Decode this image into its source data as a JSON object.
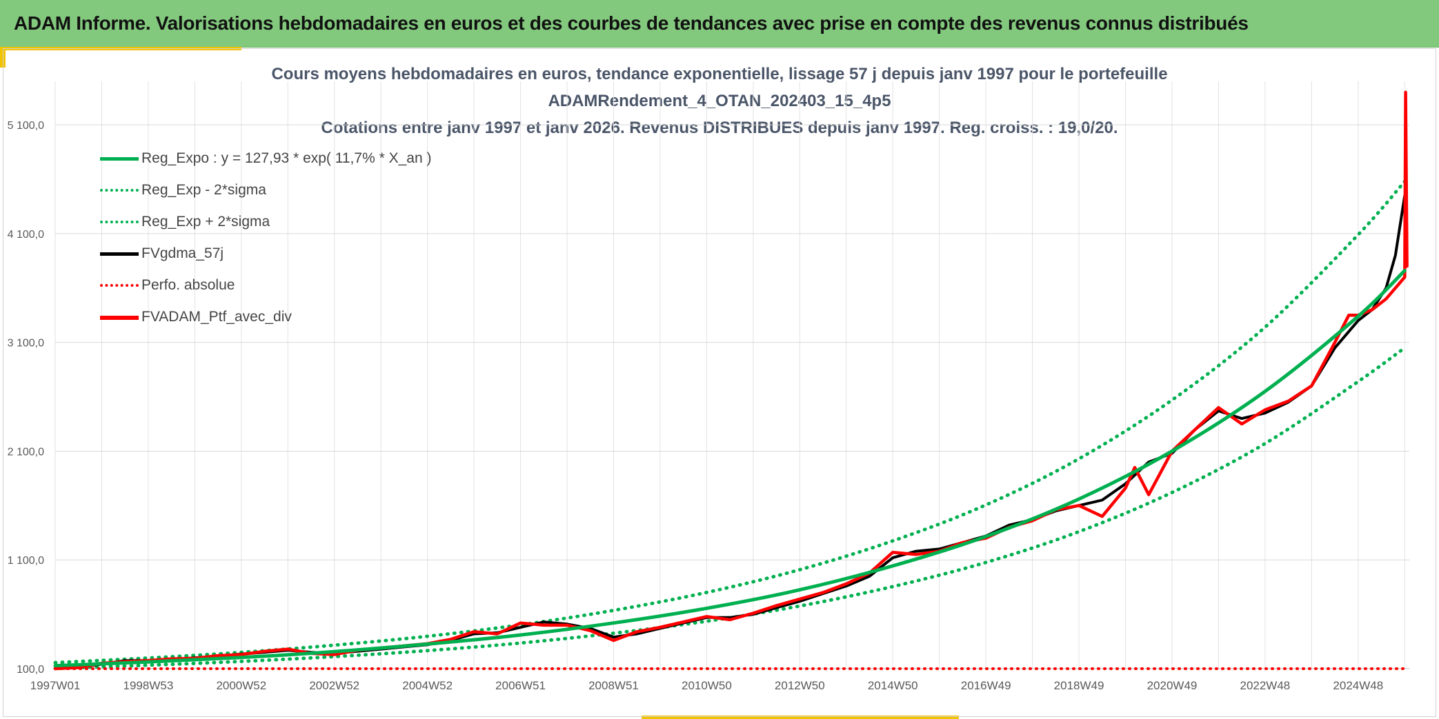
{
  "header": {
    "title": "ADAM Informe. Valorisations hebdomadaires en euros et des courbes de tendances avec prise en compte des revenus connus distribués"
  },
  "colors": {
    "banner": "#82c97d",
    "accent": "#f2c300",
    "reg_expo": "#00b050",
    "fvgdma": "#000000",
    "ptf": "#ff0000"
  },
  "chart_data": {
    "type": "line",
    "title_lines": [
      "Cours moyens hebdomadaires en euros, tendance exponentielle, lissage 57 j depuis janv 1997 pour le portefeuille",
      "ADAMRendement_4_OTAN_202403_15_4p5",
      "Cotations entre janv 1997 et janv 2026. Revenus DISTRIBUES depuis janv 1997. Reg. croiss. : 19,0/20."
    ],
    "xlabel": "",
    "ylabel": "",
    "xlim": [
      1997.0,
      2026.1
    ],
    "ylim": [
      100,
      5500
    ],
    "y_ticks": [
      {
        "value": 100,
        "label": "100,0"
      },
      {
        "value": 1100,
        "label": "1 100,0"
      },
      {
        "value": 2100,
        "label": "2 100,0"
      },
      {
        "value": 3100,
        "label": "3 100,0"
      },
      {
        "value": 4100,
        "label": "4 100,0"
      },
      {
        "value": 5100,
        "label": "5 100,0"
      }
    ],
    "x_ticks": [
      {
        "value": 1997.0,
        "label": "1997W01"
      },
      {
        "value": 1999.0,
        "label": "1998W53"
      },
      {
        "value": 2001.0,
        "label": "2000W52"
      },
      {
        "value": 2003.0,
        "label": "2002W52"
      },
      {
        "value": 2005.0,
        "label": "2004W52"
      },
      {
        "value": 2007.0,
        "label": "2006W51"
      },
      {
        "value": 2009.0,
        "label": "2008W51"
      },
      {
        "value": 2011.0,
        "label": "2010W50"
      },
      {
        "value": 2013.0,
        "label": "2012W50"
      },
      {
        "value": 2015.0,
        "label": "2014W50"
      },
      {
        "value": 2017.0,
        "label": "2016W49"
      },
      {
        "value": 2019.0,
        "label": "2018W49"
      },
      {
        "value": 2021.0,
        "label": "2020W49"
      },
      {
        "value": 2023.0,
        "label": "2022W48"
      },
      {
        "value": 2025.0,
        "label": "2024W48"
      }
    ],
    "grid": true,
    "legend_position": "top-left",
    "legend": [
      {
        "name": "Reg_Expo : y = 127,93 * exp( 11,7% *  X_an )",
        "style": "solid",
        "color": "#00b050"
      },
      {
        "name": "Reg_Exp - 2*sigma",
        "style": "dotted",
        "color": "#00b050"
      },
      {
        "name": "Reg_Exp + 2*sigma",
        "style": "dotted",
        "color": "#00b050"
      },
      {
        "name": "FVgdma_57j",
        "style": "solid",
        "color": "#000000"
      },
      {
        "name": "Perfo. absolue",
        "style": "dotted",
        "color": "#ff0000"
      },
      {
        "name": "FVADAM_Ptf_avec_div",
        "style": "solid",
        "color": "#ff0000"
      }
    ],
    "series": [
      {
        "name": "Reg_Expo : y = 127,93 * exp( 11,7% *  X_an )",
        "x": [
          1997.0,
          1999.0,
          2001.0,
          2003.0,
          2005.0,
          2007.0,
          2009.0,
          2011.0,
          2013.0,
          2015.0,
          2017.0,
          2019.0,
          2021.0,
          2023.0,
          2025.0,
          2026.0
        ],
        "values": [
          128,
          162,
          203,
          257,
          326,
          410,
          520,
          655,
          825,
          1045,
          1315,
          1660,
          2100,
          2650,
          3340,
          3760
        ]
      },
      {
        "name": "Reg_Exp - 2*sigma",
        "x": [
          1997.0,
          1999.0,
          2001.0,
          2003.0,
          2005.0,
          2007.0,
          2009.0,
          2011.0,
          2013.0,
          2015.0,
          2017.0,
          2019.0,
          2021.0,
          2023.0,
          2025.0,
          2026.0
        ],
        "values": [
          104,
          132,
          167,
          211,
          266,
          336,
          426,
          536,
          676,
          855,
          1077,
          1360,
          1720,
          2170,
          2740,
          3050
        ]
      },
      {
        "name": "Reg_Exp + 2*sigma",
        "x": [
          1997.0,
          1999.0,
          2001.0,
          2003.0,
          2005.0,
          2007.0,
          2009.0,
          2011.0,
          2013.0,
          2015.0,
          2017.0,
          2019.0,
          2021.0,
          2023.0,
          2025.0,
          2026.0
        ],
        "values": [
          156,
          198,
          250,
          316,
          398,
          503,
          636,
          801,
          1010,
          1275,
          1605,
          2030,
          2570,
          3240,
          4090,
          4580
        ]
      },
      {
        "name": "FVgdma_57j",
        "x": [
          1997.0,
          1997.5,
          1998.0,
          1998.5,
          1999.0,
          1999.5,
          2000.0,
          2000.5,
          2001.0,
          2001.5,
          2002.0,
          2002.5,
          2003.0,
          2003.5,
          2004.0,
          2004.5,
          2005.0,
          2005.5,
          2006.0,
          2006.5,
          2007.0,
          2007.5,
          2008.0,
          2008.5,
          2009.0,
          2009.5,
          2010.0,
          2010.5,
          2011.0,
          2011.5,
          2012.0,
          2012.5,
          2013.0,
          2013.5,
          2014.0,
          2014.5,
          2015.0,
          2015.5,
          2016.0,
          2016.5,
          2017.0,
          2017.5,
          2018.0,
          2018.5,
          2019.0,
          2019.5,
          2020.0,
          2020.5,
          2021.0,
          2021.5,
          2022.0,
          2022.5,
          2023.0,
          2023.5,
          2024.0,
          2024.5,
          2025.0,
          2025.3,
          2025.6,
          2025.8,
          2026.0
        ],
        "values": [
          100,
          115,
          140,
          175,
          175,
          185,
          200,
          215,
          235,
          250,
          270,
          250,
          240,
          260,
          280,
          300,
          320,
          360,
          420,
          430,
          480,
          530,
          510,
          470,
          390,
          420,
          470,
          520,
          570,
          570,
          600,
          660,
          720,
          790,
          860,
          950,
          1120,
          1180,
          1200,
          1260,
          1320,
          1420,
          1470,
          1550,
          1600,
          1650,
          1800,
          2000,
          2080,
          2300,
          2470,
          2400,
          2450,
          2550,
          2700,
          3050,
          3300,
          3400,
          3600,
          3900,
          4450
        ]
      },
      {
        "name": "Perfo. absolue",
        "x": [
          1997.0,
          2026.0
        ],
        "values": [
          100,
          100
        ]
      },
      {
        "name": "FVADAM_Ptf_avec_div",
        "x": [
          1997.0,
          1997.5,
          1998.0,
          1998.5,
          1999.0,
          1999.5,
          2000.0,
          2000.5,
          2001.0,
          2001.5,
          2002.0,
          2002.5,
          2003.0,
          2003.5,
          2004.0,
          2004.5,
          2005.0,
          2005.5,
          2006.0,
          2006.5,
          2007.0,
          2007.5,
          2008.0,
          2008.5,
          2009.0,
          2009.5,
          2010.0,
          2010.5,
          2011.0,
          2011.5,
          2012.0,
          2012.5,
          2013.0,
          2013.5,
          2014.0,
          2014.5,
          2015.0,
          2015.5,
          2016.0,
          2016.5,
          2017.0,
          2017.5,
          2018.0,
          2018.5,
          2019.0,
          2019.5,
          2020.0,
          2020.2,
          2020.5,
          2021.0,
          2021.5,
          2022.0,
          2022.5,
          2023.0,
          2023.5,
          2024.0,
          2024.5,
          2024.8,
          2025.0,
          2025.3,
          2025.6,
          2025.8,
          2026.0,
          2026.02,
          2026.05
        ],
        "values": [
          100,
          110,
          150,
          165,
          175,
          190,
          195,
          220,
          230,
          260,
          280,
          240,
          230,
          270,
          290,
          310,
          330,
          370,
          440,
          420,
          520,
          500,
          500,
          450,
          360,
          440,
          480,
          530,
          580,
          550,
          610,
          680,
          740,
          800,
          880,
          980,
          1170,
          1150,
          1180,
          1260,
          1300,
          1400,
          1460,
          1560,
          1600,
          1500,
          1760,
          1950,
          1700,
          2100,
          2300,
          2500,
          2350,
          2480,
          2560,
          2700,
          3100,
          3350,
          3350,
          3400,
          3500,
          3600,
          3700,
          5400,
          3800
        ]
      }
    ]
  }
}
